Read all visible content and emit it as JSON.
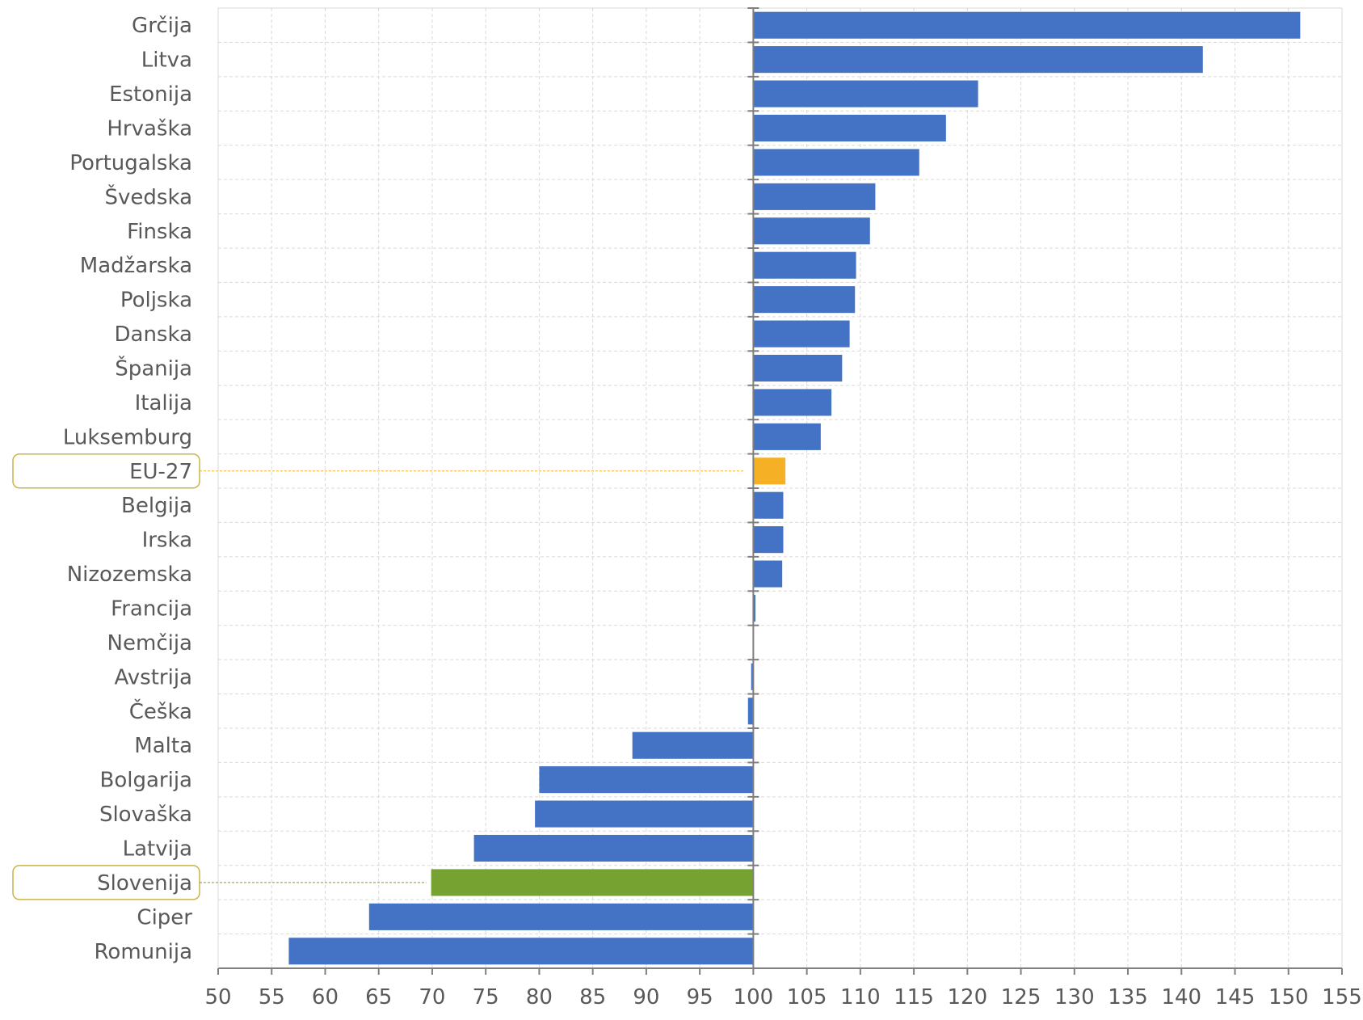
{
  "chart_data": {
    "type": "bar",
    "orientation": "horizontal",
    "baseline": 100,
    "xlim": [
      50,
      155
    ],
    "x_ticks": [
      "50",
      "55",
      "60",
      "65",
      "70",
      "75",
      "80",
      "85",
      "90",
      "95",
      "100",
      "105",
      "110",
      "115",
      "120",
      "125",
      "130",
      "135",
      "140",
      "145",
      "150",
      "155"
    ],
    "grid": true,
    "colors": {
      "default": "#4472C4",
      "highlight_eu": "#F5B026",
      "highlight_si": "#76A232",
      "callout_border": "#C9B34A"
    },
    "categories": [
      "Grčija",
      "Litva",
      "Estonija",
      "Hrvaška",
      "Portugalska",
      "Švedska",
      "Finska",
      "Madžarska",
      "Poljska",
      "Danska",
      "Španija",
      "Italija",
      "Luksemburg",
      "EU-27",
      "Belgija",
      "Irska",
      "Nizozemska",
      "Francija",
      "Nemčija",
      "Avstrija",
      "Češka",
      "Malta",
      "Bolgarija",
      "Slovaška",
      "Latvija",
      "Slovenija",
      "Ciper",
      "Romunija"
    ],
    "values": [
      151.1,
      142.0,
      121.0,
      118.0,
      115.5,
      111.4,
      110.9,
      109.6,
      109.5,
      109.0,
      108.3,
      107.3,
      106.3,
      103.0,
      102.8,
      102.8,
      102.7,
      100.2,
      100.0,
      99.8,
      99.5,
      88.7,
      80.0,
      79.6,
      73.9,
      69.9,
      64.1,
      56.6
    ],
    "highlight": {
      "EU-27": "highlight_eu",
      "Slovenija": "highlight_si"
    },
    "callouts": [
      "EU-27",
      "Slovenija"
    ]
  }
}
